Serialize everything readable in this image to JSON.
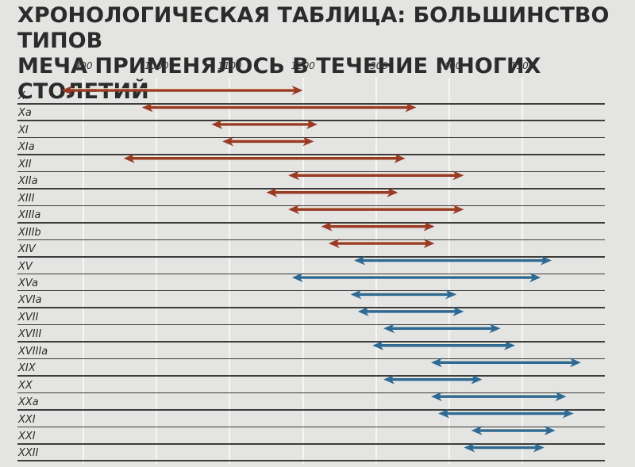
{
  "title": "Хронологическая таблица: большинство типов меча применялось в течение многих столетий",
  "title_lines": [
    "ХРОНОЛОГИЧЕСКАЯ ТАБЛИЦА: БОЛЬШИНСТВО ТИПОВ",
    "МЕЧА ПРИМЕНЯЛОСЬ В ТЕЧЕНИЕ МНОГИХ СТОЛЕТИЙ"
  ],
  "colors": {
    "early": "#9a3b24",
    "late": "#2f6a94",
    "background": "#e4e4e2",
    "grid": "#f6f6f4",
    "line": "#3c3c3c"
  },
  "axis": {
    "ticks": [
      "900",
      "1000",
      "1100",
      "1200",
      "1300",
      "1400",
      "1500"
    ]
  },
  "chart_data": {
    "type": "range-bar",
    "title": "Хронологическая таблица: большинство типов меча применялось в течение многих столетий",
    "xlabel": "",
    "ylabel": "",
    "xlim": [
      860,
      1600
    ],
    "x_ticks": [
      900,
      1000,
      1100,
      1200,
      1300,
      1400,
      1500
    ],
    "grid": "vertical",
    "categories": [
      "X",
      "Xa",
      "XI",
      "XIa",
      "XII",
      "XIIa",
      "XIII",
      "XIIIa",
      "XIIIb",
      "XIV",
      "XV",
      "XVa",
      "XVIa",
      "XVII",
      "XVIII",
      "XVIIIa",
      "XIX",
      "XX",
      "XXa",
      "XXI",
      "XXI",
      "XXII"
    ],
    "ranges": [
      {
        "type": "X",
        "start": 870,
        "end": 1200,
        "color": "early"
      },
      {
        "type": "Xa",
        "start": 980,
        "end": 1355,
        "color": "early"
      },
      {
        "type": "XI",
        "start": 1075,
        "end": 1220,
        "color": "early"
      },
      {
        "type": "XIa",
        "start": 1090,
        "end": 1215,
        "color": "early"
      },
      {
        "type": "XII",
        "start": 955,
        "end": 1340,
        "color": "early"
      },
      {
        "type": "XIIa",
        "start": 1180,
        "end": 1420,
        "color": "early"
      },
      {
        "type": "XIII",
        "start": 1150,
        "end": 1330,
        "color": "early"
      },
      {
        "type": "XIIIa",
        "start": 1180,
        "end": 1420,
        "color": "early"
      },
      {
        "type": "XIIIb",
        "start": 1225,
        "end": 1380,
        "color": "early"
      },
      {
        "type": "XIV",
        "start": 1235,
        "end": 1380,
        "color": "early"
      },
      {
        "type": "XV",
        "start": 1270,
        "end": 1540,
        "color": "late"
      },
      {
        "type": "XVa",
        "start": 1185,
        "end": 1525,
        "color": "late"
      },
      {
        "type": "XVIa",
        "start": 1265,
        "end": 1410,
        "color": "late"
      },
      {
        "type": "XVII",
        "start": 1275,
        "end": 1420,
        "color": "late"
      },
      {
        "type": "XVIII",
        "start": 1310,
        "end": 1470,
        "color": "late"
      },
      {
        "type": "XVIIIa",
        "start": 1295,
        "end": 1490,
        "color": "late"
      },
      {
        "type": "XIX",
        "start": 1375,
        "end": 1580,
        "color": "late"
      },
      {
        "type": "XX",
        "start": 1310,
        "end": 1445,
        "color": "late"
      },
      {
        "type": "XXa",
        "start": 1375,
        "end": 1560,
        "color": "late"
      },
      {
        "type": "XXI",
        "start": 1385,
        "end": 1570,
        "color": "late"
      },
      {
        "type": "XXI",
        "start": 1430,
        "end": 1545,
        "color": "late"
      },
      {
        "type": "XXII",
        "start": 1420,
        "end": 1530,
        "color": "late"
      }
    ]
  }
}
